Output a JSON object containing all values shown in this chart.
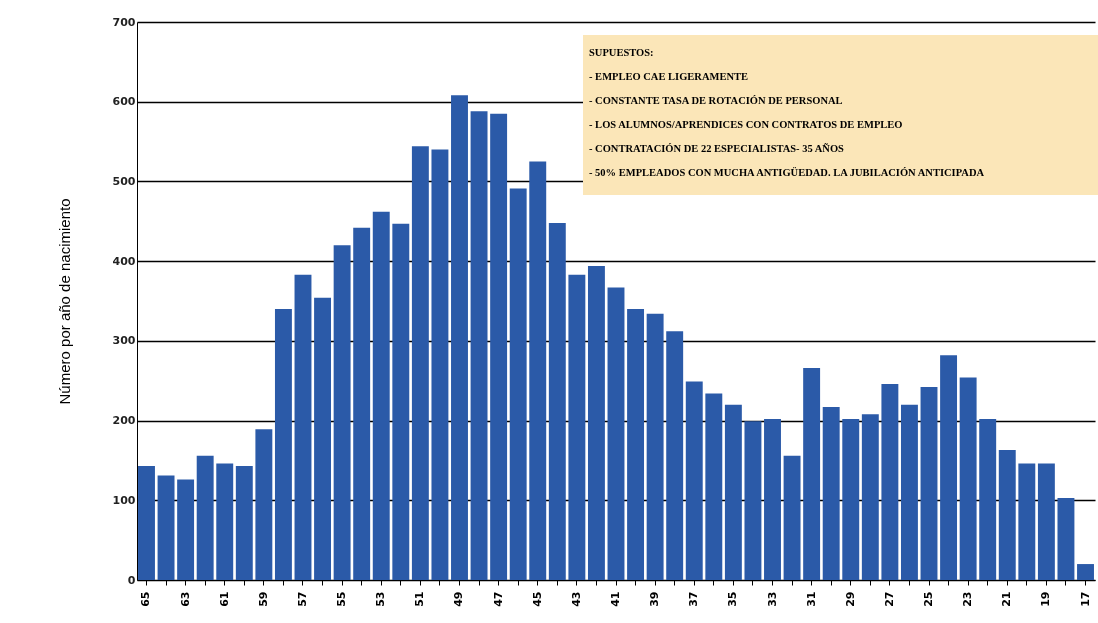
{
  "chart_data": {
    "type": "bar",
    "ylabel": "Número por año de nacimiento",
    "categories": [
      "65",
      null,
      "63",
      null,
      "61",
      null,
      "59",
      null,
      "57",
      null,
      "55",
      null,
      "53",
      null,
      "51",
      null,
      "49",
      null,
      "47",
      null,
      "45",
      null,
      "43",
      null,
      "41",
      null,
      "39",
      null,
      "37",
      null,
      "35",
      null,
      "33",
      null,
      "31",
      null,
      "29",
      null,
      "27",
      null,
      "25",
      null,
      "23",
      null,
      "21",
      null,
      "19",
      null,
      "17"
    ],
    "values": [
      143,
      131,
      126,
      156,
      146,
      143,
      189,
      340,
      383,
      354,
      420,
      442,
      462,
      447,
      544,
      540,
      608,
      588,
      585,
      491,
      525,
      448,
      383,
      394,
      367,
      340,
      334,
      312,
      249,
      234,
      220,
      199,
      202,
      156,
      266,
      217,
      202,
      208,
      246,
      220,
      242,
      282,
      254,
      202,
      163,
      146,
      146,
      103,
      20
    ],
    "color": "#2b5aa8",
    "ylim": [
      0,
      700
    ],
    "yticks": [
      0,
      100,
      200,
      300,
      400,
      500,
      600,
      700
    ],
    "grid": "y",
    "annotations": [
      "SUPUESTOS:",
      "- EMPLEO CAE LIGERAMENTE",
      "- CONSTANTE TASA DE ROTACIÓN DE PERSONAL",
      "- LOS ALUMNOS/APRENDICES CON CONTRATOS DE EMPLEO",
      "- CONTRATACIÓN DE 22 ESPECIALISTAS- 35 AÑOS",
      "- 50% EMPLEADOS CON MUCHA ANTIGÜEDAD. LA JUBILACIÓN ANTICIPADA"
    ]
  }
}
